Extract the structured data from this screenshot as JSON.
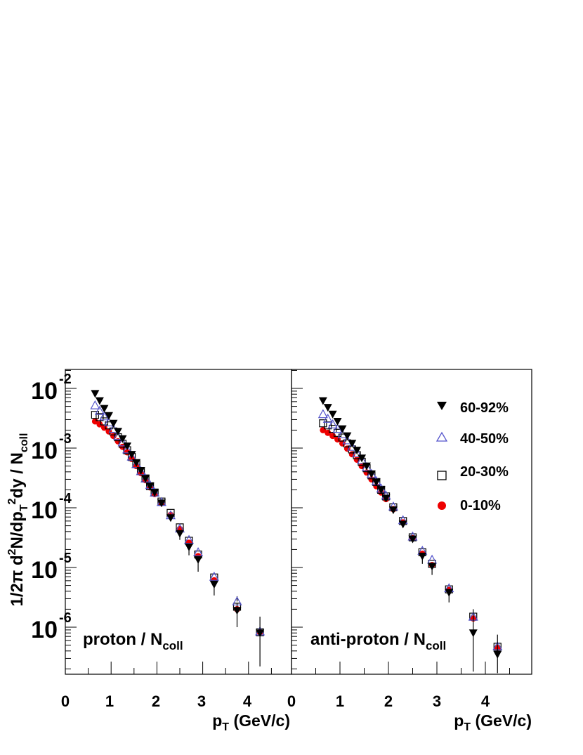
{
  "ylabel": {
    "prefix": "1/2π d",
    "sup1": "2",
    "mid1": "N/dp",
    "sub1": "T",
    "sup2": "2",
    "mid2": "dy / N",
    "sub2": "coll"
  },
  "xlabel": {
    "main": "p",
    "sub": "T",
    "rest": " (GeV/c)"
  },
  "colors": {
    "60-92%": "#000000",
    "40-50%": "#5555cc",
    "20-30%": "#000000",
    "0-10%": "#ee0000"
  },
  "chart_data": [
    {
      "type": "scatter",
      "log_y": true,
      "xlim": [
        0,
        4.9
      ],
      "ylim": [
        1.5e-07,
        0.02
      ],
      "x_ticks": [
        "0",
        "1",
        "2",
        "3",
        "4"
      ],
      "y_ticks": [
        {
          "base": "10",
          "exp": "-2",
          "value": 0.01
        },
        {
          "base": "10",
          "exp": "-3",
          "value": 0.001
        },
        {
          "base": "10",
          "exp": "-4",
          "value": 0.0001
        },
        {
          "base": "10",
          "exp": "-5",
          "value": 1e-05
        },
        {
          "base": "10",
          "exp": "-6",
          "value": 1e-06
        }
      ],
      "annotation": {
        "main": "proton / N",
        "sub": "coll"
      },
      "series": [
        {
          "name": "60-92%",
          "marker": "filled-down-triangle",
          "x": [
            0.65,
            0.75,
            0.85,
            0.95,
            1.05,
            1.15,
            1.25,
            1.35,
            1.45,
            1.55,
            1.65,
            1.75,
            1.85,
            1.95,
            2.1,
            2.3,
            2.5,
            2.7,
            2.9,
            3.25,
            3.75,
            4.25
          ],
          "y": [
            0.0082,
            0.0062,
            0.0046,
            0.0035,
            0.0026,
            0.0019,
            0.00143,
            0.00108,
            0.00078,
            0.00057,
            0.00042,
            0.00031,
            0.00023,
            0.00018,
            0.00012,
            6.8e-05,
            3.7e-05,
            2.2e-05,
            1.35e-05,
            5.2e-06,
            1.9e-06,
            8e-07
          ],
          "yerr_lo": [
            0,
            0,
            0,
            0,
            0,
            0,
            0,
            0,
            0,
            0,
            0,
            0,
            0,
            0,
            0,
            0,
            8e-06,
            6e-06,
            5e-06,
            1.8e-06,
            9e-07,
            5.8e-07
          ],
          "yerr_hi": [
            0,
            0,
            0,
            0,
            0,
            0,
            0,
            0,
            0,
            0,
            0,
            0,
            0,
            0,
            0,
            0,
            0,
            0,
            0,
            0,
            6e-07,
            7e-07
          ]
        },
        {
          "name": "40-50%",
          "marker": "open-triangle",
          "x": [
            0.65,
            0.75,
            0.85,
            0.95,
            1.05,
            1.15,
            1.25,
            1.35,
            1.45,
            1.55,
            1.65,
            1.75,
            1.85,
            1.95,
            2.1,
            2.3,
            2.5,
            2.7,
            2.9,
            3.25,
            3.75,
            4.25
          ],
          "y": [
            0.0052,
            0.0042,
            0.0034,
            0.0027,
            0.0021,
            0.0016,
            0.00125,
            0.00095,
            0.00072,
            0.00054,
            0.00041,
            0.00031,
            0.00024,
            0.00018,
            0.000125,
            7.5e-05,
            4.5e-05,
            2.9e-05,
            1.8e-05,
            7e-06,
            2.7e-06,
            8.5e-07
          ],
          "yerr_lo": [
            0,
            0,
            0,
            0,
            0,
            0,
            0,
            0,
            0,
            0,
            0,
            0,
            0,
            0,
            0,
            0,
            0,
            0,
            0,
            0,
            0,
            0
          ],
          "yerr_hi": [
            0,
            0,
            0,
            0,
            0,
            0,
            0,
            0,
            0,
            0,
            0,
            0,
            0,
            0,
            0,
            0,
            0,
            0,
            0,
            0,
            6e-07,
            0
          ]
        },
        {
          "name": "20-30%",
          "marker": "open-square",
          "x": [
            0.65,
            0.75,
            0.85,
            0.95,
            1.05,
            1.15,
            1.25,
            1.35,
            1.45,
            1.55,
            1.65,
            1.75,
            1.85,
            1.95,
            2.1,
            2.3,
            2.5,
            2.7,
            2.9,
            3.25,
            3.75,
            4.25
          ],
          "y": [
            0.0036,
            0.0033,
            0.0028,
            0.0024,
            0.0019,
            0.00152,
            0.00118,
            0.00092,
            0.00071,
            0.00054,
            0.00041,
            0.00031,
            0.00023,
            0.00018,
            0.000127,
            8.2e-05,
            4.7e-05,
            2.8e-05,
            1.65e-05,
            6.8e-06,
            2.2e-06,
            8.2e-07
          ],
          "yerr_lo": [
            0,
            0,
            0,
            0,
            0,
            0,
            0,
            0,
            0,
            0,
            0,
            0,
            0,
            0,
            0,
            0,
            0,
            0,
            0,
            0,
            0,
            0
          ],
          "yerr_hi": [
            0,
            0,
            0,
            0,
            0,
            0,
            0,
            0,
            0,
            0,
            0,
            0,
            0,
            0,
            0,
            0,
            0,
            0,
            0,
            0,
            0,
            0
          ]
        },
        {
          "name": "0-10%",
          "marker": "filled-circle",
          "x": [
            0.65,
            0.75,
            0.85,
            0.95,
            1.05,
            1.15,
            1.25,
            1.35,
            1.45,
            1.55,
            1.65,
            1.75,
            1.85,
            1.95,
            2.1,
            2.3,
            2.5,
            2.7,
            2.9,
            3.25,
            3.75,
            4.25
          ],
          "y": [
            0.0028,
            0.0025,
            0.0022,
            0.0019,
            0.0016,
            0.0013,
            0.00105,
            0.00085,
            0.00066,
            0.0005,
            0.00038,
            0.00029,
            0.00022,
            0.00017,
            0.00012,
            7.6e-05,
            4.4e-05,
            2.6e-05,
            1.55e-05,
            6.1e-06,
            2e-06,
            8.2e-07
          ],
          "yerr_lo": [
            0,
            0,
            0,
            0,
            0,
            0,
            0,
            0,
            0,
            0,
            0,
            0,
            0,
            0,
            0,
            0,
            0,
            0,
            0,
            0,
            0,
            0
          ],
          "yerr_hi": [
            0,
            0,
            0,
            0,
            0,
            0,
            0,
            0,
            0,
            0,
            0,
            0,
            0,
            0,
            0,
            0,
            0,
            0,
            0,
            0,
            0,
            0
          ]
        }
      ]
    },
    {
      "type": "scatter",
      "log_y": true,
      "xlim": [
        0,
        4.9
      ],
      "ylim": [
        1.5e-07,
        0.02
      ],
      "x_ticks": [
        "0",
        "1",
        "2",
        "3",
        "4"
      ],
      "annotation": {
        "main": "anti-proton / N",
        "sub": "coll"
      },
      "legend": {
        "position": "top-right",
        "entries": [
          "60-92%",
          "40-50%",
          "20-30%",
          "0-10%"
        ]
      },
      "series": [
        {
          "name": "60-92%",
          "marker": "filled-down-triangle",
          "x": [
            0.65,
            0.75,
            0.85,
            0.95,
            1.05,
            1.15,
            1.25,
            1.35,
            1.45,
            1.55,
            1.65,
            1.75,
            1.85,
            1.95,
            2.1,
            2.3,
            2.5,
            2.7,
            2.9,
            3.25,
            3.75,
            4.25
          ],
          "y": [
            0.0062,
            0.0048,
            0.0037,
            0.0028,
            0.0021,
            0.0016,
            0.0012,
            0.00092,
            0.00068,
            0.0005,
            0.00037,
            0.00027,
            0.0002,
            0.000145,
            9.2e-05,
            5.3e-05,
            3e-05,
            1.55e-05,
            1.05e-05,
            3.8e-06,
            8e-07,
            3.5e-07
          ],
          "yerr_lo": [
            0,
            0,
            0,
            0,
            0,
            0,
            0,
            0,
            0,
            0,
            0,
            0,
            0,
            0,
            0,
            0,
            0,
            4e-06,
            3e-06,
            1.2e-06,
            6.2e-07,
            1.8e-07
          ],
          "yerr_hi": [
            0,
            0,
            0,
            0,
            0,
            0,
            0,
            0,
            0,
            0,
            0,
            0,
            0,
            0,
            0,
            0,
            0,
            0,
            0,
            0,
            1.2e-06,
            4e-07
          ]
        },
        {
          "name": "40-50%",
          "marker": "open-triangle",
          "x": [
            0.65,
            0.75,
            0.85,
            0.95,
            1.05,
            1.15,
            1.25,
            1.35,
            1.45,
            1.55,
            1.65,
            1.75,
            1.85,
            1.95,
            2.1,
            2.3,
            2.5,
            2.7,
            2.9,
            3.25,
            3.75,
            4.25
          ],
          "y": [
            0.0037,
            0.0031,
            0.0025,
            0.0021,
            0.0017,
            0.00135,
            0.00105,
            0.00082,
            0.00063,
            0.00048,
            0.00037,
            0.00028,
            0.00021,
            0.00016,
            0.000105,
            6.2e-05,
            3.3e-05,
            1.9e-05,
            1.35e-05,
            4.5e-06,
            1.5e-06,
            4.8e-07
          ],
          "yerr_lo": [
            0,
            0,
            0,
            0,
            0,
            0,
            0,
            0,
            0,
            0,
            0,
            0,
            0,
            0,
            0,
            0,
            0,
            0,
            0,
            0,
            0,
            0
          ],
          "yerr_hi": [
            0,
            0,
            0,
            0,
            0,
            0,
            0,
            0,
            0,
            0,
            0,
            0,
            0,
            0,
            0,
            0,
            0,
            0,
            0,
            0,
            0,
            0
          ]
        },
        {
          "name": "20-30%",
          "marker": "open-square",
          "x": [
            0.65,
            0.75,
            0.85,
            0.95,
            1.05,
            1.15,
            1.25,
            1.35,
            1.45,
            1.55,
            1.65,
            1.75,
            1.85,
            1.95,
            2.1,
            2.3,
            2.5,
            2.7,
            2.9,
            3.25,
            3.75,
            4.25
          ],
          "y": [
            0.0026,
            0.0024,
            0.0021,
            0.0018,
            0.0015,
            0.0012,
            0.00095,
            0.00076,
            0.00059,
            0.00046,
            0.00035,
            0.00027,
            0.0002,
            0.000155,
            0.000102,
            6e-05,
            3.2e-05,
            1.8e-05,
            1.15e-05,
            4.3e-06,
            1.5e-06,
            4.7e-07
          ],
          "yerr_lo": [
            0,
            0,
            0,
            0,
            0,
            0,
            0,
            0,
            0,
            0,
            0,
            0,
            0,
            0,
            0,
            0,
            0,
            0,
            0,
            0,
            0,
            0
          ],
          "yerr_hi": [
            0,
            0,
            0,
            0,
            0,
            0,
            0,
            0,
            0,
            0,
            0,
            0,
            0,
            0,
            0,
            0,
            0,
            0,
            0,
            0,
            0,
            0
          ]
        },
        {
          "name": "0-10%",
          "marker": "filled-circle",
          "x": [
            0.65,
            0.75,
            0.85,
            0.95,
            1.05,
            1.15,
            1.25,
            1.35,
            1.45,
            1.55,
            1.65,
            1.75,
            1.85,
            1.95,
            2.1,
            2.3,
            2.5,
            2.7,
            2.9,
            3.25,
            3.75,
            4.25
          ],
          "y": [
            0.002,
            0.0018,
            0.0016,
            0.0014,
            0.0012,
            0.00098,
            0.00079,
            0.00064,
            0.0005,
            0.00039,
            0.0003,
            0.00023,
            0.00018,
            0.00014,
            9.5e-05,
            5.7e-05,
            3.1e-05,
            1.7e-05,
            1.1e-05,
            4.2e-06,
            1.4e-06,
            4.5e-07
          ],
          "yerr_lo": [
            0,
            0,
            0,
            0,
            0,
            0,
            0,
            0,
            0,
            0,
            0,
            0,
            0,
            0,
            0,
            0,
            0,
            0,
            0,
            0,
            0,
            0
          ],
          "yerr_hi": [
            0,
            0,
            0,
            0,
            0,
            0,
            0,
            0,
            0,
            0,
            0,
            0,
            0,
            0,
            0,
            0,
            0,
            0,
            0,
            0,
            0,
            0
          ]
        }
      ]
    }
  ]
}
